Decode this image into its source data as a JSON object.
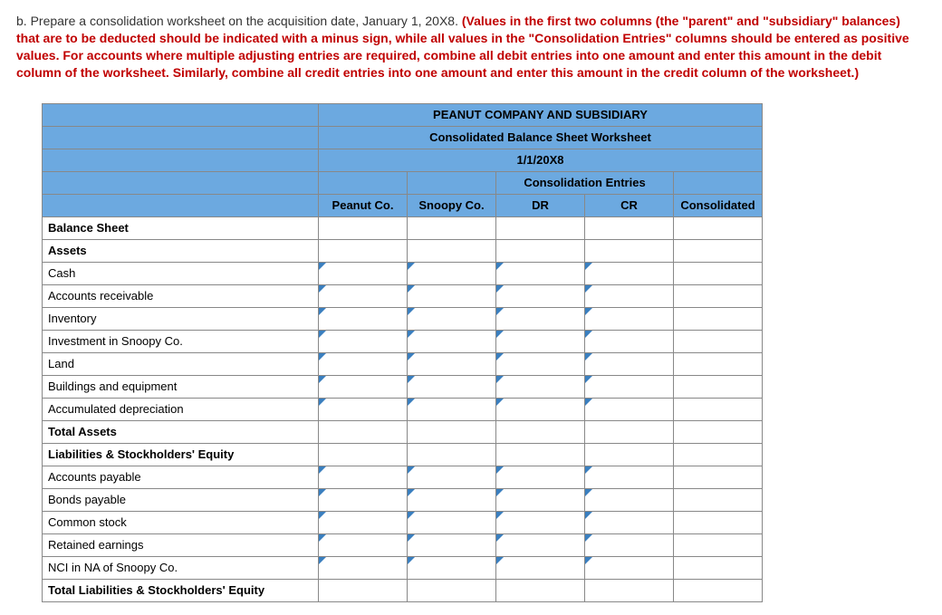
{
  "question": {
    "prefix": "b. Prepare a consolidation worksheet on the acquisition date, January 1, 20X8. ",
    "instructions": "(Values in the first two columns (the \"parent\" and \"subsidiary\" balances) that are to be deducted should be indicated with a minus sign, while all values in the \"Consolidation Entries\" columns should be entered as positive values. For accounts where multiple adjusting entries are required, combine all debit entries into one amount and enter this amount in the debit column of the worksheet. Similarly, combine all credit entries into one amount and enter this amount in the credit column of the worksheet.)"
  },
  "worksheet": {
    "title1": "PEANUT COMPANY AND SUBSIDIARY",
    "title2": "Consolidated Balance Sheet Worksheet",
    "title3": "1/1/20X8",
    "groupHeader": "Consolidation Entries",
    "col1": "Peanut Co.",
    "col2": "Snoopy Co.",
    "col3": "DR",
    "col4": "CR",
    "col5": "Consolidated",
    "rows": [
      {
        "label": "Balance Sheet",
        "bold": true,
        "inputs": [
          false,
          false,
          false,
          false,
          false
        ]
      },
      {
        "label": "Assets",
        "bold": true,
        "inputs": [
          false,
          false,
          false,
          false,
          false
        ]
      },
      {
        "label": "Cash",
        "bold": false,
        "inputs": [
          true,
          true,
          true,
          true,
          false
        ]
      },
      {
        "label": "Accounts receivable",
        "bold": false,
        "inputs": [
          true,
          true,
          true,
          true,
          false
        ]
      },
      {
        "label": "Inventory",
        "bold": false,
        "inputs": [
          true,
          true,
          true,
          true,
          false
        ]
      },
      {
        "label": "Investment in Snoopy Co.",
        "bold": false,
        "inputs": [
          true,
          true,
          true,
          true,
          false
        ]
      },
      {
        "label": "Land",
        "bold": false,
        "inputs": [
          true,
          true,
          true,
          true,
          false
        ]
      },
      {
        "label": "Buildings and equipment",
        "bold": false,
        "inputs": [
          true,
          true,
          true,
          true,
          false
        ]
      },
      {
        "label": "Accumulated depreciation",
        "bold": false,
        "inputs": [
          true,
          true,
          true,
          true,
          false
        ]
      },
      {
        "label": "Total Assets",
        "bold": true,
        "inputs": [
          false,
          false,
          false,
          false,
          false
        ]
      },
      {
        "label": "Liabilities & Stockholders' Equity",
        "bold": true,
        "inputs": [
          false,
          false,
          false,
          false,
          false
        ]
      },
      {
        "label": "Accounts payable",
        "bold": false,
        "inputs": [
          true,
          true,
          true,
          true,
          false
        ]
      },
      {
        "label": "Bonds payable",
        "bold": false,
        "inputs": [
          true,
          true,
          true,
          true,
          false
        ]
      },
      {
        "label": "Common stock",
        "bold": false,
        "inputs": [
          true,
          true,
          true,
          true,
          false
        ]
      },
      {
        "label": "Retained earnings",
        "bold": false,
        "inputs": [
          true,
          true,
          true,
          true,
          false
        ]
      },
      {
        "label": "NCI in NA of Snoopy Co.",
        "bold": false,
        "inputs": [
          true,
          true,
          true,
          true,
          false
        ]
      },
      {
        "label": "Total Liabilities & Stockholders' Equity",
        "bold": true,
        "inputs": [
          false,
          false,
          false,
          false,
          false
        ]
      }
    ]
  }
}
